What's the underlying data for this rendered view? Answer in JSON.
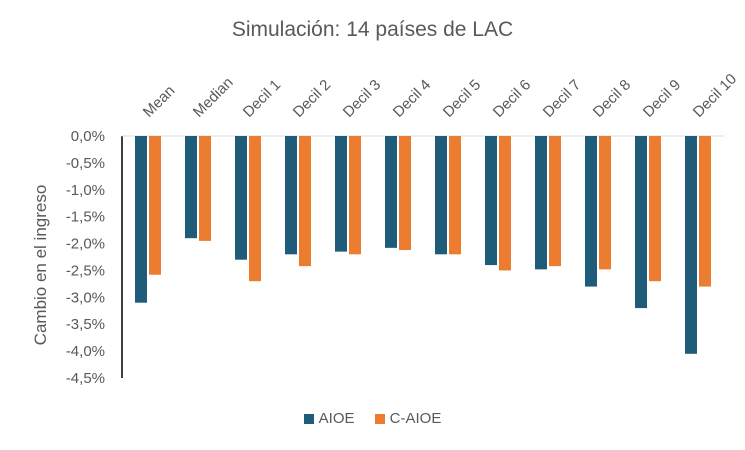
{
  "chart_data": {
    "type": "bar",
    "title": "Simulación: 14 países de LAC",
    "xlabel": "",
    "ylabel": "Cambio en el ingreso",
    "ylim": [
      -4.5,
      0
    ],
    "yticks": [
      "0,0%",
      "-0,5%",
      "-1,0%",
      "-1,5%",
      "-2,0%",
      "-2,5%",
      "-3,0%",
      "-3,5%",
      "-4,0%",
      "-4,5%"
    ],
    "ytick_values": [
      0,
      -0.5,
      -1.0,
      -1.5,
      -2.0,
      -2.5,
      -3.0,
      -3.5,
      -4.0,
      -4.5
    ],
    "categories": [
      "Mean",
      "Median",
      "Decil 1",
      "Decil 2",
      "Decil 3",
      "Decil 4",
      "Decil 5",
      "Decil 6",
      "Decil 7",
      "Decil 8",
      "Decil 9",
      "Decil 10"
    ],
    "series": [
      {
        "name": "AIOE",
        "color": "#1f5c7a",
        "values": [
          -3.1,
          -1.9,
          -2.3,
          -2.2,
          -2.15,
          -2.08,
          -2.2,
          -2.4,
          -2.48,
          -2.8,
          -3.2,
          -4.05
        ]
      },
      {
        "name": "C-AIOE",
        "color": "#ec7c30",
        "values": [
          -2.58,
          -1.95,
          -2.7,
          -2.42,
          -2.2,
          -2.12,
          -2.2,
          -2.5,
          -2.42,
          -2.48,
          -2.7,
          -2.8
        ]
      }
    ],
    "legend": "bottom",
    "grid": false
  }
}
